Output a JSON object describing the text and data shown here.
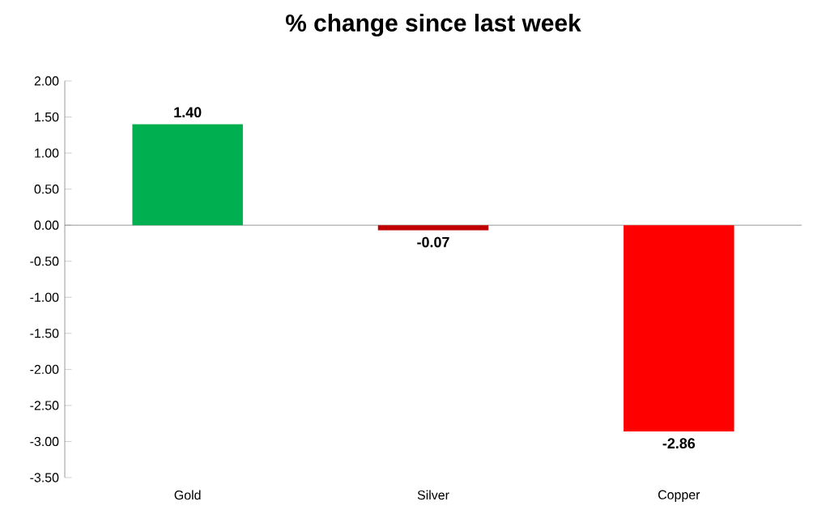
{
  "chart_data": {
    "type": "bar",
    "title": "% change since last week",
    "categories": [
      "Gold",
      "Silver",
      "Copper"
    ],
    "values": [
      1.4,
      -0.07,
      -2.86
    ],
    "colors": [
      "#00b050",
      "#c00000",
      "#ff0000"
    ],
    "value_labels": [
      "1.40",
      "-0.07",
      "-2.86"
    ],
    "ylim": [
      -3.5,
      2.0
    ],
    "yticks": [
      {
        "value": -3.5,
        "label": "-3.50"
      },
      {
        "value": -3.0,
        "label": "-3.00"
      },
      {
        "value": -2.5,
        "label": "-2.50"
      },
      {
        "value": -2.0,
        "label": "-2.00"
      },
      {
        "value": -1.5,
        "label": "-1.50"
      },
      {
        "value": -1.0,
        "label": "-1.00"
      },
      {
        "value": -0.5,
        "label": "-0.50"
      },
      {
        "value": 0.0,
        "label": "0.00"
      },
      {
        "value": 0.5,
        "label": "0.50"
      },
      {
        "value": 1.0,
        "label": "1.00"
      },
      {
        "value": 1.5,
        "label": "1.50"
      },
      {
        "value": 2.0,
        "label": "2.00"
      }
    ],
    "legend": false
  }
}
